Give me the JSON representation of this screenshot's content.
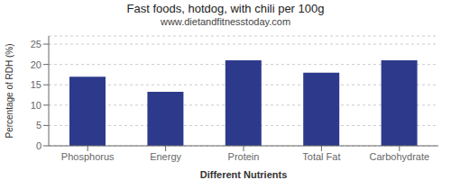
{
  "chart_data": {
    "type": "bar",
    "title": "Fast foods, hotdog, with chili per 100g",
    "subtitle": "www.dietandfitnesstoday.com",
    "xlabel": "Different Nutrients",
    "ylabel": "Percentage of RDH (%)",
    "categories": [
      "Phosphorus",
      "Energy",
      "Protein",
      "Total Fat",
      "Carbohydrate"
    ],
    "values": [
      17,
      13.3,
      21,
      18,
      21
    ],
    "color": "#2d3a8c",
    "ylim": [
      0,
      27
    ],
    "yticks": [
      0,
      5,
      10,
      15,
      20,
      25
    ],
    "grid": true
  }
}
